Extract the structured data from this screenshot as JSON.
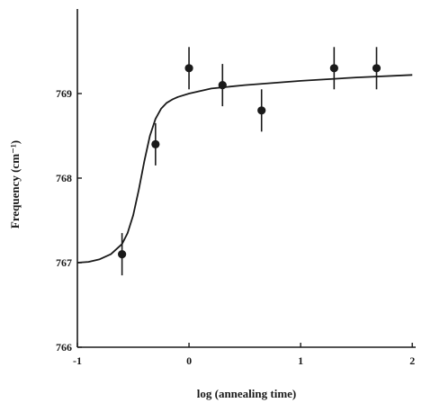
{
  "chart_data": {
    "type": "scatter",
    "xlabel": "log (annealing time)",
    "ylabel": "Frequency (cm⁻¹)",
    "xlim": [
      -1,
      2.2
    ],
    "ylim": [
      766,
      770
    ],
    "x_ticks": [
      "-1",
      "0",
      "1",
      "2"
    ],
    "y_ticks": [
      "766",
      "767",
      "768",
      "769"
    ],
    "grid": false,
    "legend": "none",
    "series": [
      {
        "style": "points-with-error-bars",
        "color": "#1a1a1a",
        "points": [
          {
            "x": -0.6,
            "y": 767.1,
            "err": 0.25
          },
          {
            "x": -0.3,
            "y": 768.4,
            "err": 0.25
          },
          {
            "x": 0.0,
            "y": 769.3,
            "err": 0.25
          },
          {
            "x": 0.3,
            "y": 769.1,
            "err": 0.25
          },
          {
            "x": 0.65,
            "y": 768.8,
            "err": 0.25
          },
          {
            "x": 1.3,
            "y": 769.3,
            "err": 0.25
          },
          {
            "x": 1.68,
            "y": 769.3,
            "err": 0.25
          }
        ]
      },
      {
        "style": "fit-curve",
        "color": "#1a1a1a",
        "x": [
          -1.0,
          -0.9,
          -0.8,
          -0.7,
          -0.6,
          -0.55,
          -0.5,
          -0.45,
          -0.4,
          -0.35,
          -0.3,
          -0.25,
          -0.2,
          -0.15,
          -0.1,
          0.0,
          0.2,
          0.5,
          1.0,
          1.5,
          2.0
        ],
        "y": [
          767.0,
          767.01,
          767.04,
          767.1,
          767.22,
          767.35,
          767.56,
          767.86,
          768.2,
          768.5,
          768.7,
          768.82,
          768.89,
          768.93,
          768.96,
          769.0,
          769.06,
          769.1,
          769.15,
          769.19,
          769.22
        ]
      }
    ]
  }
}
